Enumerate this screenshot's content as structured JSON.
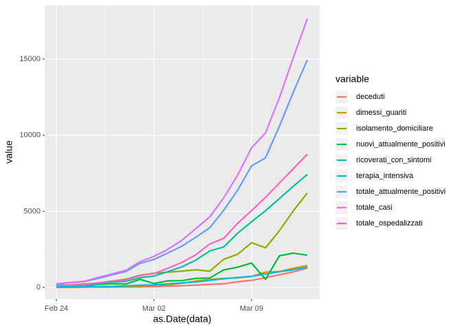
{
  "chart_data": {
    "type": "line",
    "x_label": "as.Date(data)",
    "y_label": "value",
    "legend_title": "variable",
    "categories": [
      "Feb 24",
      null,
      null,
      null,
      null,
      null,
      null,
      "Mar 02",
      null,
      null,
      null,
      null,
      null,
      null,
      "Mar 09",
      null,
      null,
      null,
      null
    ],
    "ylim": [
      -768,
      18527
    ],
    "yticks": [
      0,
      5000,
      10000,
      15000
    ],
    "grid": true,
    "legend": "right",
    "series": [
      {
        "name": "deceduti",
        "color": "#F8766D",
        "values": [
          7,
          10,
          12,
          17,
          21,
          29,
          34,
          52,
          79,
          107,
          148,
          197,
          233,
          366,
          463,
          631,
          827,
          1016,
          1266
        ]
      },
      {
        "name": "dimessi_guariti",
        "color": "#D39200",
        "values": [
          1,
          1,
          3,
          45,
          46,
          50,
          83,
          149,
          160,
          276,
          414,
          523,
          589,
          622,
          724,
          1004,
          1045,
          1258,
          1439
        ]
      },
      {
        "name": "isolamento_domiciliare",
        "color": "#93AA00",
        "values": [
          94,
          162,
          221,
          284,
          412,
          543,
          798,
          927,
          1000,
          1065,
          1155,
          1060,
          1843,
          2180,
          2936,
          2599,
          3724,
          5036,
          6201
        ]
      },
      {
        "name": "nuovi_attualmente_positivi",
        "color": "#00BA38",
        "values": [
          221,
          90,
          74,
          203,
          233,
          228,
          528,
          258,
          428,
          443,
          590,
          620,
          1145,
          1326,
          1598,
          529,
          2076,
          2249,
          2116
        ]
      },
      {
        "name": "ricoverati_con_sintomi",
        "color": "#00C19F",
        "values": [
          101,
          114,
          128,
          248,
          345,
          401,
          639,
          742,
          1034,
          1346,
          1790,
          2394,
          2651,
          3557,
          4316,
          5038,
          5838,
          6650,
          7426
        ]
      },
      {
        "name": "terapia_intensiva",
        "color": "#00B9E3",
        "values": [
          26,
          35,
          36,
          56,
          64,
          105,
          140,
          166,
          229,
          295,
          351,
          462,
          567,
          650,
          733,
          877,
          1028,
          1153,
          1328
        ]
      },
      {
        "name": "totale_attualmente_positivi",
        "color": "#619CFF",
        "values": [
          221,
          311,
          385,
          588,
          821,
          1049,
          1577,
          1835,
          2263,
          2706,
          3296,
          3916,
          5061,
          6387,
          7985,
          8514,
          10590,
          12839,
          14955
        ]
      },
      {
        "name": "totale_casi",
        "color": "#DB72FB",
        "values": [
          229,
          322,
          400,
          650,
          888,
          1128,
          1694,
          2036,
          2502,
          3089,
          3858,
          4636,
          5883,
          7375,
          9172,
          10149,
          12462,
          15113,
          17660
        ]
      },
      {
        "name": "totale_ospedalizzati",
        "color": "#FF61C3",
        "values": [
          127,
          150,
          164,
          304,
          409,
          506,
          779,
          908,
          1263,
          1641,
          2141,
          2856,
          3218,
          4207,
          5049,
          5915,
          6866,
          7803,
          8754
        ]
      }
    ]
  }
}
